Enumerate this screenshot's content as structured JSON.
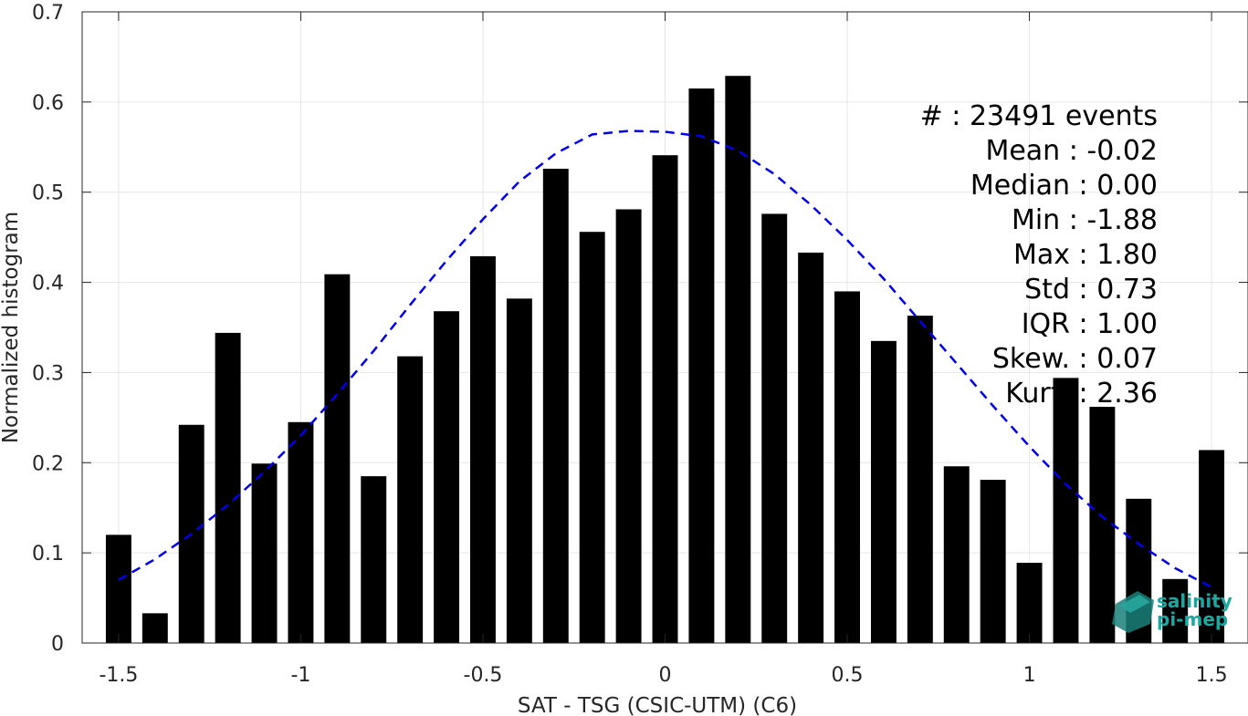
{
  "chart_data": {
    "type": "bar",
    "xlabel": "SAT - TSG (CSIC-UTM) (C6)",
    "ylabel": "Normalized histogram",
    "xlim": [
      -1.6,
      1.6
    ],
    "ylim": [
      0,
      0.7
    ],
    "xticks": [
      -1.5,
      -1,
      -0.5,
      0,
      0.5,
      1,
      1.5
    ],
    "xtick_labels": [
      "-1.5",
      "-1",
      "-0.5",
      "0",
      "0.5",
      "1",
      "1.5"
    ],
    "yticks": [
      0,
      0.1,
      0.2,
      0.3,
      0.4,
      0.5,
      0.6,
      0.7
    ],
    "ytick_labels": [
      "0",
      "0.1",
      "0.2",
      "0.3",
      "0.4",
      "0.5",
      "0.6",
      "0.7"
    ],
    "grid": true,
    "bin_width": 0.1,
    "bar_color": "#000000",
    "x": [
      -1.5,
      -1.4,
      -1.3,
      -1.2,
      -1.1,
      -1.0,
      -0.9,
      -0.8,
      -0.7,
      -0.6,
      -0.5,
      -0.4,
      -0.3,
      -0.2,
      -0.1,
      0.0,
      0.1,
      0.2,
      0.3,
      0.4,
      0.5,
      0.6,
      0.7,
      0.8,
      0.9,
      1.0,
      1.1,
      1.2,
      1.3,
      1.4,
      1.5
    ],
    "values": [
      0.12,
      0.033,
      0.242,
      0.344,
      0.199,
      0.245,
      0.409,
      0.185,
      0.318,
      0.368,
      0.429,
      0.382,
      0.526,
      0.456,
      0.481,
      0.541,
      0.615,
      0.629,
      0.476,
      0.433,
      0.39,
      0.335,
      0.363,
      0.196,
      0.181,
      0.089,
      0.294,
      0.262,
      0.16,
      0.071,
      0.214
    ],
    "fit": {
      "type": "normal",
      "color": "#0000ee",
      "style": "dashed",
      "x": [
        -1.5,
        -1.4,
        -1.3,
        -1.2,
        -1.1,
        -1.0,
        -0.9,
        -0.8,
        -0.7,
        -0.6,
        -0.5,
        -0.4,
        -0.3,
        -0.2,
        -0.1,
        0.0,
        0.1,
        0.2,
        0.3,
        0.4,
        0.5,
        0.6,
        0.7,
        0.8,
        0.9,
        1.0,
        1.1,
        1.2,
        1.3,
        1.4,
        1.5
      ],
      "y": [
        0.07,
        0.093,
        0.121,
        0.153,
        0.19,
        0.23,
        0.276,
        0.324,
        0.375,
        0.424,
        0.47,
        0.512,
        0.543,
        0.564,
        0.568,
        0.567,
        0.562,
        0.546,
        0.52,
        0.486,
        0.447,
        0.404,
        0.357,
        0.31,
        0.263,
        0.218,
        0.176,
        0.14,
        0.11,
        0.083,
        0.062
      ]
    }
  },
  "stats": [
    "#  : 23491 events",
    "Mean : -0.02",
    "Median : 0.00",
    "Min : -1.88",
    "Max : 1.80",
    "Std : 0.73",
    "IQR : 1.00",
    "Skew. : 0.07",
    "Kurt. : 2.36"
  ],
  "logo": {
    "line1": "salinity",
    "line2": "pi-mep"
  }
}
